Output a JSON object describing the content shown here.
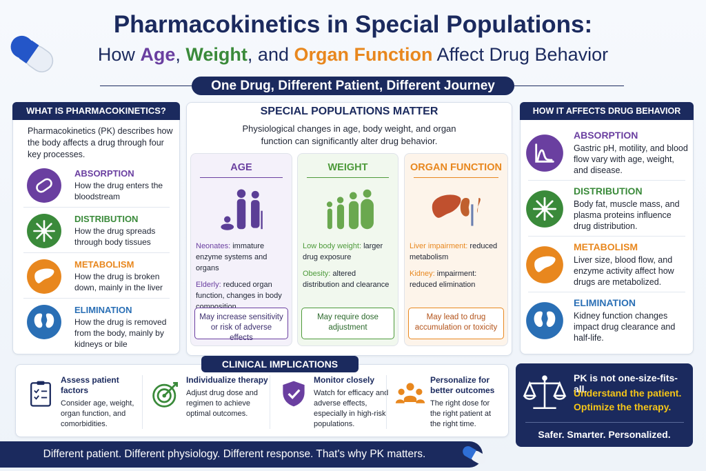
{
  "header": {
    "title": "Pharmacokinetics in Special Populations:",
    "subtitle_parts": [
      "How ",
      "Age",
      ", ",
      "Weight",
      ", and ",
      "Organ Function",
      " Affect Drug Behavior"
    ],
    "tagline": "One Drug, Different Patient, Different Journey"
  },
  "left_panel": {
    "title": "WHAT IS PHARMACOKINETICS?",
    "intro": "Pharmacokinetics (PK) describes how the body affects a drug through four key processes.",
    "items": [
      {
        "title": "ABSORPTION",
        "text": "How the drug enters the bloodstream"
      },
      {
        "title": "DISTRIBUTION",
        "text": "How the drug spreads through body tissues"
      },
      {
        "title": "METABOLISM",
        "text": "How the drug is broken down, mainly in the liver"
      },
      {
        "title": "ELIMINATION",
        "text": "How the drug is removed from the body, mainly by kidneys or bile"
      }
    ]
  },
  "center_panel": {
    "title": "SPECIAL POPULATIONS MATTER",
    "intro": "Physiological changes in age, body weight, and organ function can significantly alter drug behavior.",
    "columns": [
      {
        "title": "AGE",
        "bullets": [
          {
            "lead": "Neonates:",
            "text": "immature enzyme systems and organs"
          },
          {
            "lead": "Elderly:",
            "text": "reduced organ function, changes in body composition"
          }
        ],
        "note": "May increase sensitivity or risk of adverse effects"
      },
      {
        "title": "WEIGHT",
        "bullets": [
          {
            "lead": "Low body weight:",
            "text": "larger drug exposure"
          },
          {
            "lead": "Obesity:",
            "text": "altered distribution and clearance"
          }
        ],
        "note": "May require dose adjustment"
      },
      {
        "title": "ORGAN FUNCTION",
        "bullets": [
          {
            "lead": "Liver impairment:",
            "text": "reduced metabolism"
          },
          {
            "lead": "Kidney:",
            "text": "impairment: reduced elimination"
          }
        ],
        "note": "May lead to drug accumulation or toxicity"
      }
    ]
  },
  "right_panel": {
    "title": "HOW IT AFFECTS DRUG BEHAVIOR",
    "items": [
      {
        "title": "ABSORPTION",
        "text": "Gastric pH, motility, and blood flow vary with age, weight, and disease."
      },
      {
        "title": "DISTRIBUTION",
        "text": "Body fat, muscle mass, and plasma proteins influence drug distribution."
      },
      {
        "title": "METABOLISM",
        "text": "Liver size, blood flow, and enzyme activity affect how drugs are metabolized."
      },
      {
        "title": "ELIMINATION",
        "text": "Kidney function changes impact drug clearance and half-life."
      }
    ]
  },
  "clinical": {
    "title": "CLINICAL IMPLICATIONS",
    "items": [
      {
        "title": "Assess patient factors",
        "text": "Consider age, weight, organ function, and comorbidities."
      },
      {
        "title": "Individualize therapy",
        "text": "Adjust drug dose and regimen to achieve optimal outcomes."
      },
      {
        "title": "Monitor closely",
        "text": "Watch for efficacy and adverse effects, especially in high-risk populations."
      },
      {
        "title": "Personalize for better outcomes",
        "text": "The right dose for the right patient at the right time."
      }
    ]
  },
  "callout": {
    "line1": "PK is not one-size-fits-all.",
    "line2": "Understand the patient.",
    "line3": "Optimize the therapy.",
    "footer": "Safer. Smarter. Personalized."
  },
  "footer": {
    "text": "Different patient. Different physiology. Different response. That's why PK matters."
  }
}
